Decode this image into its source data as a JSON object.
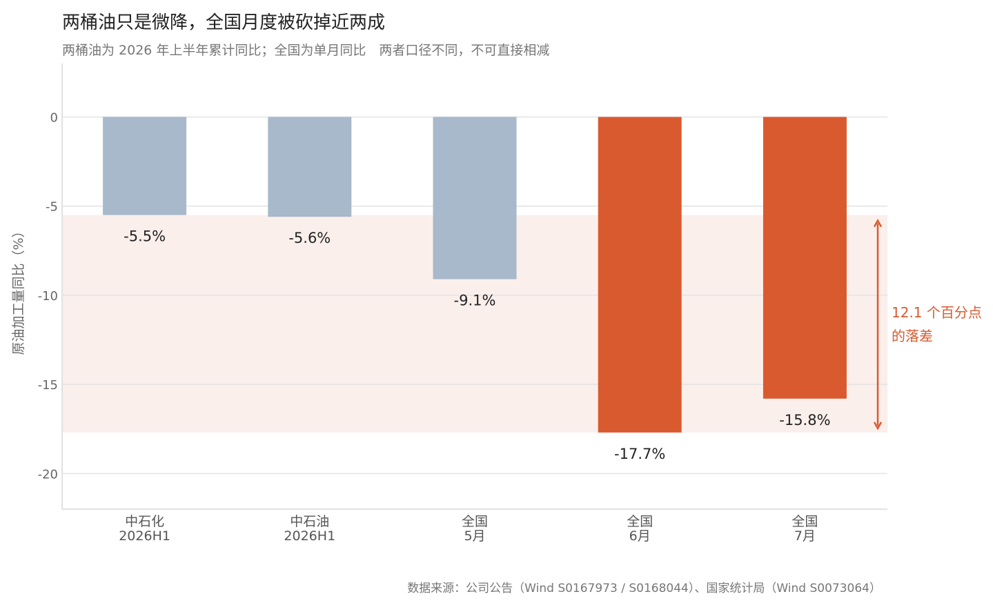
{
  "title": "两桶油只是微降，全国月度被砍掉近两成",
  "subtitle": "两桶油为 2026 年上半年累计同比；全国为单月同比　两者口径不同，不可直接相减",
  "source": "数据来源：公司公告（Wind S0167973 / S0168044）、国家统计局（Wind S0073064）",
  "colors": {
    "muted": "#a7b9ca",
    "accent": "#d95a2f",
    "band": "#fbefeb",
    "grid": "#e3e3e3",
    "axis": "#d8d8d8"
  },
  "chart_data": {
    "type": "bar",
    "ylabel": "原油加工量同比（%）",
    "ylim": [
      -22,
      3
    ],
    "yticks": [
      0,
      -5,
      -10,
      -15,
      -20
    ],
    "grid": true,
    "categories": [
      {
        "line1": "中石化",
        "line2": "2026H1"
      },
      {
        "line1": "中石油",
        "line2": "2026H1"
      },
      {
        "line1": "全国",
        "line2": "5月"
      },
      {
        "line1": "全国",
        "line2": "6月"
      },
      {
        "line1": "全国",
        "line2": "7月"
      }
    ],
    "values": [
      -5.5,
      -5.6,
      -9.1,
      -17.7,
      -15.8
    ],
    "value_labels": [
      "-5.5%",
      "-5.6%",
      "-9.1%",
      "-17.7%",
      "-15.8%"
    ],
    "highlight": [
      false,
      false,
      false,
      true,
      true
    ],
    "band": {
      "from": -5.5,
      "to": -17.7
    },
    "annotation": {
      "line1": "12.1 个百分点",
      "line2": "的落差"
    }
  }
}
